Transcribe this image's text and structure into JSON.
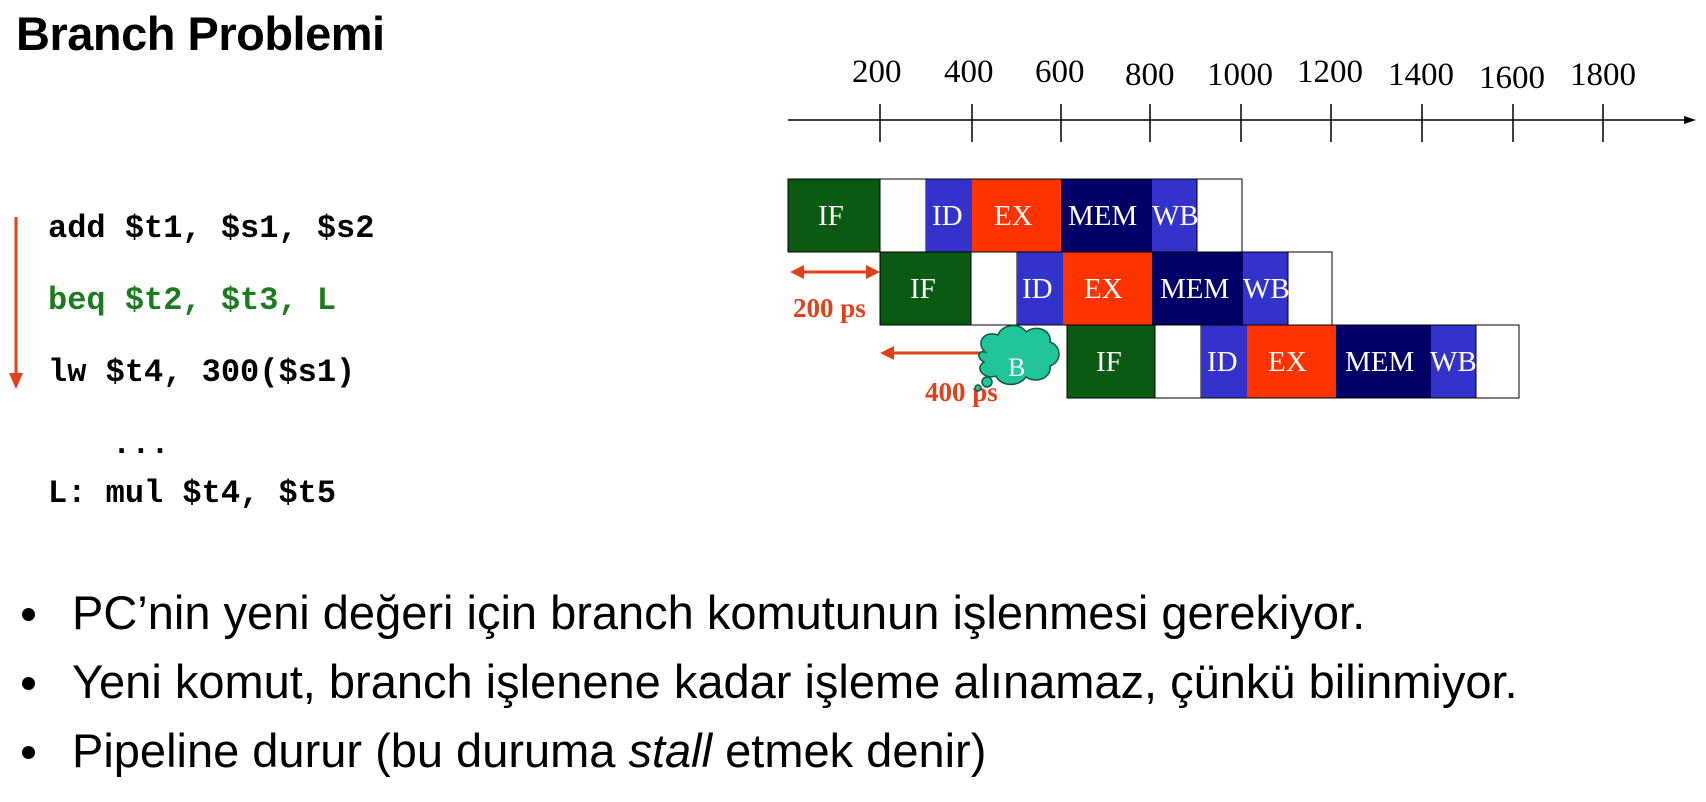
{
  "title": "Branch Problemi",
  "code": {
    "lines": [
      "add $t1, $s1, $s2",
      "beq $t2, $t3, L",
      "lw $t4, 300($s1)",
      "...",
      "L: mul $t4, $t5"
    ]
  },
  "diagram": {
    "time_axis": {
      "ticks": [
        "200",
        "400",
        "600",
        "800",
        "1000",
        "1200",
        "1400",
        "1600",
        "1800"
      ]
    },
    "stages": {
      "IF": "IF",
      "ID": "ID",
      "EX": "EX",
      "MEM": "MEM",
      "WB": "WB"
    },
    "bubble_label": "B",
    "delays": {
      "first": "200 ps",
      "second": "400 ps"
    },
    "colors": {
      "IF": "#0b5a12",
      "ID": "#3333cc",
      "EX": "#ff3300",
      "MEM": "#000066",
      "WB": "#3333cc",
      "arrow": "#e0401a",
      "bubble": "#22c49a",
      "code_green": "#1e7a1e"
    }
  },
  "bullets": {
    "b1": "PC’nin yeni değeri için branch komutunun işlenmesi gerekiyor.",
    "b2": "Yeni komut, branch işlenene kadar işleme alınamaz, çünkü bilinmiyor.",
    "b3_pre": "Pipeline durur (bu duruma ",
    "b3_em": "stall",
    "b3_post": " etmek denir)"
  }
}
